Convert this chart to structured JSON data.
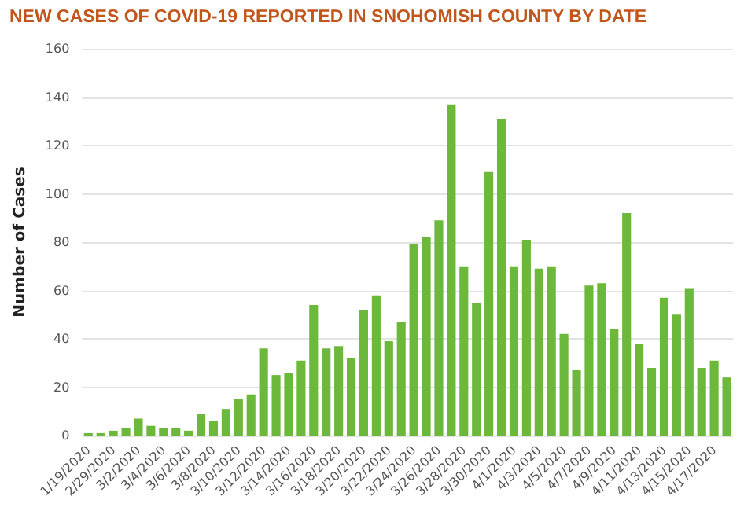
{
  "chart_data": {
    "type": "bar",
    "title": "NEW CASES OF COVID-19 REPORTED IN SNOHOMISH COUNTY BY DATE",
    "ylabel": "Number of Cases",
    "categories": [
      "1/19/2020",
      null,
      "2/29/2020",
      null,
      "3/2/2020",
      null,
      "3/4/2020",
      null,
      "3/6/2020",
      null,
      "3/8/2020",
      null,
      "3/10/2020",
      null,
      "3/12/2020",
      null,
      "3/14/2020",
      null,
      "3/16/2020",
      null,
      "3/18/2020",
      null,
      "3/20/2020",
      null,
      "3/22/2020",
      null,
      "3/24/2020",
      null,
      "3/26/2020",
      null,
      "3/28/2020",
      null,
      "3/30/2020",
      null,
      "4/1/2020",
      null,
      "4/3/2020",
      null,
      "4/5/2020",
      null,
      "4/7/2020",
      null,
      "4/9/2020",
      null,
      "4/11/2020",
      null,
      "4/13/2020",
      null,
      "4/15/2020",
      null,
      "4/17/2020",
      null
    ],
    "values": [
      1,
      1,
      2,
      3,
      7,
      4,
      3,
      3,
      2,
      9,
      6,
      11,
      15,
      17,
      36,
      25,
      26,
      31,
      54,
      36,
      37,
      32,
      52,
      58,
      39,
      47,
      79,
      82,
      89,
      137,
      70,
      55,
      109,
      131,
      70,
      81,
      69,
      70,
      42,
      27,
      62,
      63,
      44,
      92,
      38,
      28,
      57,
      50,
      61,
      28,
      31,
      24
    ],
    "color": "#6cb83a",
    "ylim": [
      0,
      160
    ],
    "yticks": [
      0,
      20,
      40,
      60,
      80,
      100,
      120,
      140,
      160
    ],
    "grid": "y"
  }
}
